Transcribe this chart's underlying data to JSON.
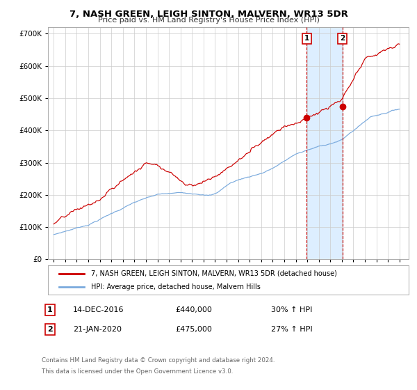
{
  "title": "7, NASH GREEN, LEIGH SINTON, MALVERN, WR13 5DR",
  "subtitle": "Price paid vs. HM Land Registry's House Price Index (HPI)",
  "ylim": [
    0,
    720000
  ],
  "xlim_start": 1994.5,
  "xlim_end": 2025.8,
  "yticks": [
    0,
    100000,
    200000,
    300000,
    400000,
    500000,
    600000,
    700000
  ],
  "ytick_labels": [
    "£0",
    "£100K",
    "£200K",
    "£300K",
    "£400K",
    "£500K",
    "£600K",
    "£700K"
  ],
  "xtick_years": [
    1995,
    1996,
    1997,
    1998,
    1999,
    2000,
    2001,
    2002,
    2003,
    2004,
    2005,
    2006,
    2007,
    2008,
    2009,
    2010,
    2011,
    2012,
    2013,
    2014,
    2015,
    2016,
    2017,
    2018,
    2019,
    2020,
    2021,
    2022,
    2023,
    2024,
    2025
  ],
  "red_line_color": "#cc0000",
  "blue_line_color": "#7aaadd",
  "shade_color": "#ddeeff",
  "grid_color": "#cccccc",
  "bg_color": "#ffffff",
  "sale1_x": 2016.958,
  "sale1_y": 440000,
  "sale2_x": 2020.054,
  "sale2_y": 475000,
  "legend_label_red": "7, NASH GREEN, LEIGH SINTON, MALVERN, WR13 5DR (detached house)",
  "legend_label_blue": "HPI: Average price, detached house, Malvern Hills",
  "annot1_date": "14-DEC-2016",
  "annot1_price": "£440,000",
  "annot1_hpi": "30% ↑ HPI",
  "annot2_date": "21-JAN-2020",
  "annot2_price": "£475,000",
  "annot2_hpi": "27% ↑ HPI",
  "footnote_line1": "Contains HM Land Registry data © Crown copyright and database right 2024.",
  "footnote_line2": "This data is licensed under the Open Government Licence v3.0."
}
